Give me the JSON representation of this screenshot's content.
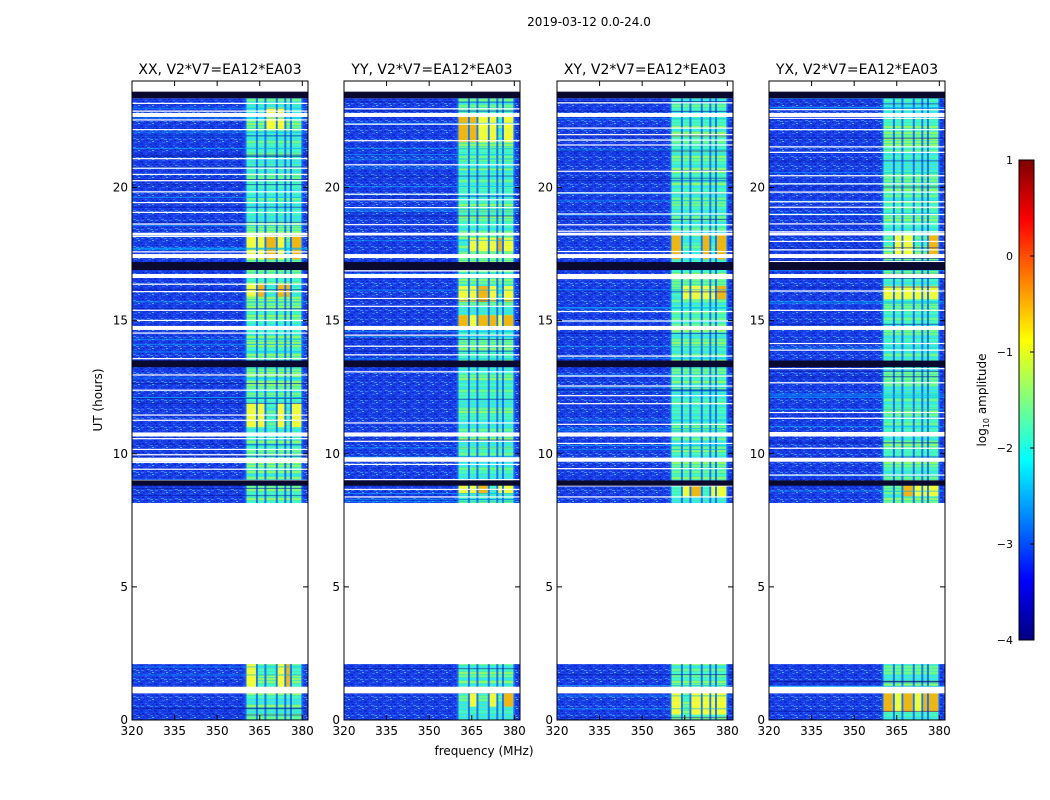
{
  "chart_data": {
    "type": "heatmap",
    "suptitle": "2019-03-12 0.0-24.0",
    "xlabel": "frequency (MHz)",
    "ylabel": "UT (hours)",
    "xlim": [
      320,
      382
    ],
    "ylim": [
      0,
      24
    ],
    "xticks": [
      320,
      335,
      350,
      365,
      380
    ],
    "yticks": [
      0,
      5,
      10,
      15,
      20
    ],
    "panels": [
      {
        "title": "XX, V2*V7=EA12*EA03",
        "strong_bands": [
          [
            1.0,
            2.1
          ],
          [
            11.0,
            11.9
          ],
          [
            15.9,
            16.4
          ],
          [
            17.3,
            18.2
          ],
          [
            22.2,
            23.0
          ]
        ]
      },
      {
        "title": "YY, V2*V7=EA12*EA03",
        "strong_bands": [
          [
            0.5,
            1.2
          ],
          [
            8.5,
            9.0
          ],
          [
            14.8,
            15.2
          ],
          [
            15.7,
            16.3
          ],
          [
            17.6,
            18.1
          ],
          [
            21.7,
            22.8
          ]
        ]
      },
      {
        "title": "XY, V2*V7=EA12*EA03",
        "strong_bands": [
          [
            0.2,
            1.1
          ],
          [
            8.4,
            9.0
          ],
          [
            15.8,
            16.3
          ],
          [
            17.3,
            18.2
          ]
        ]
      },
      {
        "title": "YX, V2*V7=EA12*EA03",
        "strong_bands": [
          [
            0.3,
            1.2
          ],
          [
            8.4,
            9.0
          ],
          [
            15.8,
            16.3
          ],
          [
            17.4,
            18.2
          ]
        ]
      }
    ],
    "rfi_band_mhz": [
      360,
      380
    ],
    "rfi_channel_edges_mhz": [
      360,
      364,
      367,
      371,
      374,
      376,
      380
    ],
    "empty_gaps_hours": [
      [
        1.0,
        1.25
      ],
      [
        2.1,
        8.15
      ],
      [
        9.7,
        9.85
      ],
      [
        10.65,
        10.8
      ],
      [
        14.65,
        14.8
      ],
      [
        16.6,
        16.75
      ],
      [
        17.35,
        17.5
      ],
      [
        18.2,
        18.3
      ],
      [
        22.65,
        22.8
      ],
      [
        23.35,
        24.0
      ]
    ],
    "flag_bands_hours": [
      [
        8.8,
        9.0
      ],
      [
        13.25,
        13.5
      ],
      [
        16.9,
        17.2
      ],
      [
        23.35,
        23.6
      ]
    ],
    "colorbar": {
      "label": "log",
      "label_sub": "10",
      "label_tail": " amplitude",
      "range": [
        -4,
        1
      ],
      "ticks": [
        "1",
        "0",
        "−1",
        "−2",
        "−3",
        "−4"
      ],
      "colors": [
        "#00007f",
        "#0000ff",
        "#0080ff",
        "#00ffff",
        "#80ff80",
        "#ffff00",
        "#ff8000",
        "#ff0000",
        "#7f0000"
      ]
    }
  }
}
